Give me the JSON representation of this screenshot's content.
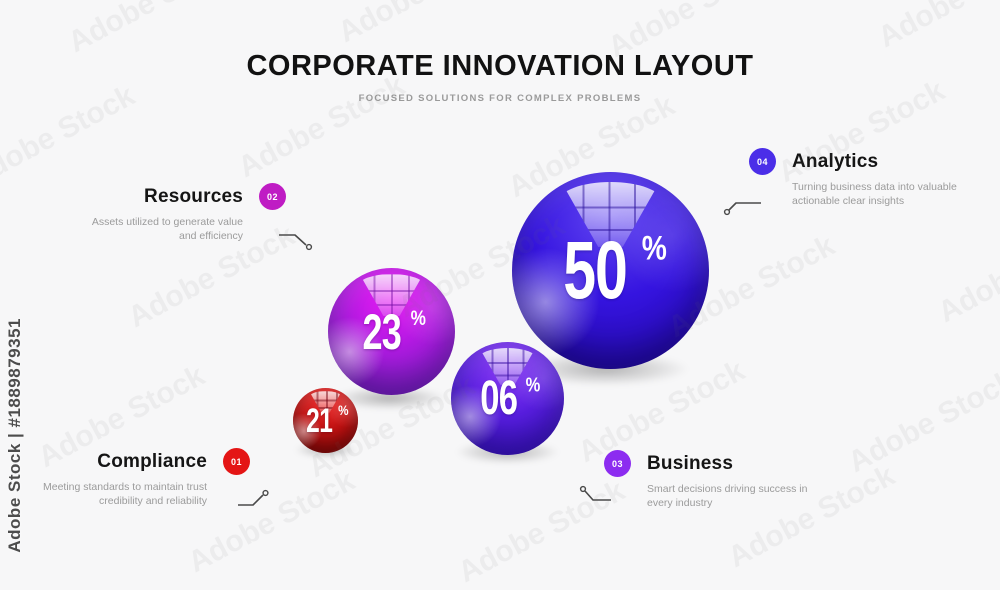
{
  "header": {
    "title": "CORPORATE INNOVATION LAYOUT",
    "subtitle": "FOCUSED SOLUTIONS FOR COMPLEX PROBLEMS"
  },
  "items": [
    {
      "number": "02",
      "title": "Resources",
      "desc_line1": "Assets utilized to generate value",
      "desc_line2": "and efficiency",
      "badge_color": "#bf1cc4"
    },
    {
      "number": "04",
      "title": "Analytics",
      "desc_line1": "Turning business data into valuable",
      "desc_line2": "actionable clear insights",
      "badge_color": "#4b2ee8"
    },
    {
      "number": "01",
      "title": "Compliance",
      "desc_line1": "Meeting standards to maintain trust",
      "desc_line2": "credibility and reliability",
      "badge_color": "#e41515"
    },
    {
      "number": "03",
      "title": "Business",
      "desc_line1": "Smart decisions driving success in",
      "desc_line2": "every industry",
      "badge_color": "#8c2cf0"
    }
  ],
  "balls": [
    {
      "value": "50",
      "suffix": "%",
      "color_top": "#6246f2",
      "color_mid": "#3514e0",
      "color_bottom": "#20069f"
    },
    {
      "value": "23",
      "suffix": "%",
      "color_top": "#e61af2",
      "color_mid": "#b01ae2",
      "color_bottom": "#7e25cf"
    },
    {
      "value": "06",
      "suffix": "%",
      "color_top": "#8a3df2",
      "color_mid": "#5b1fe4",
      "color_bottom": "#3a11cf"
    },
    {
      "value": "21",
      "suffix": "%",
      "color_top": "#ee2e2e",
      "color_mid": "#c31212",
      "color_bottom": "#7e0909"
    }
  ],
  "watermark": {
    "diagonal_text": "Adobe Stock",
    "id_text": "Adobe Stock | #1889879351"
  }
}
